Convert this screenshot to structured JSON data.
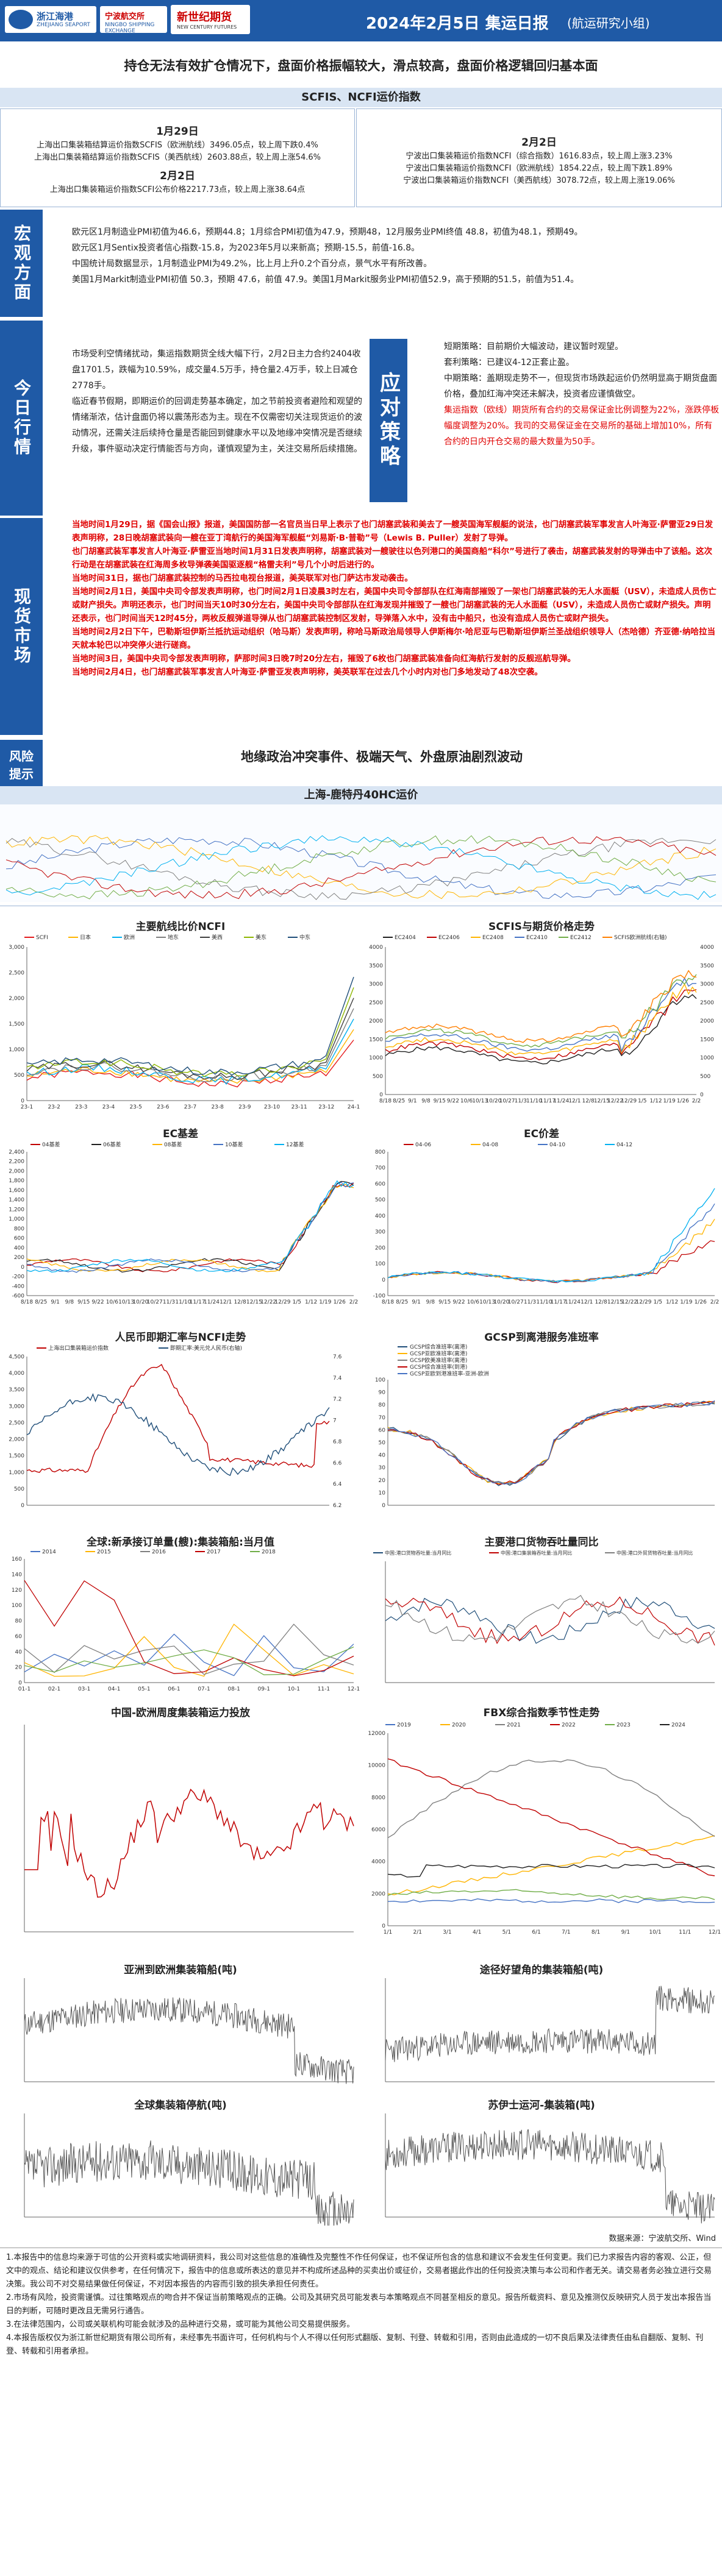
{
  "header": {
    "logo_zheshang_cn": "浙江海港",
    "logo_zheshang_en": "ZHEJIANG SEAPORT",
    "logo_ningbo_cn": "宁波航交所",
    "logo_ningbo_en": "NINGBO SHIPPING EXCHANGE",
    "logo_xsj_cn": "新世纪期货",
    "logo_xsj_en": "NEW CENTURY FUTURES",
    "title": "2024年2月5日 集运日报",
    "subtitle": "(航运研究小组)"
  },
  "headline": "持仓无法有效扩仓情况下，盘面价格振幅较大，滑点较高，盘面价格逻辑回归基本面",
  "section_index": {
    "title": "SCFIS、NCFI运价指数",
    "left_date1": "1月29日",
    "left_lines1": [
      "上海出口集装箱结算运价指数SCFIS（欧洲航线）3496.05点，较上周下跌0.4%",
      "上海出口集装箱结算运价指数SCFIS（美西航线）2603.88点，较上周上涨54.6%"
    ],
    "left_date2": "2月2日",
    "left_lines2": [
      "上海出口集装箱运价指数SCFI公布价格2217.73点，较上周上涨38.64点"
    ],
    "right_date": "2月2日",
    "right_lines": [
      "宁波出口集装箱运价指数NCFI（综合指数）1616.83点，较上周上涨3.23%",
      "宁波出口集装箱运价指数NCFI（欧洲航线）1854.22点，较上周下跌1.89%",
      "宁波出口集装箱运价指数NCFI（美西航线）3078.72点，较上周上涨19.06%"
    ]
  },
  "macro": {
    "label": "宏观方面",
    "lines": [
      "欧元区1月制造业PMI初值为46.6，预期44.8；1月综合PMI初值为47.9，预期48，12月服务业PMI终值 48.8，初值为48.1，预期49。",
      "欧元区1月Sentix投资者信心指数-15.8，为2023年5月以来新高；预期-15.5，前值-16.8。",
      "中国统计局数据显示，1月制造业PMI为49.2%，比上月上升0.2个百分点，景气水平有所改善。",
      "美国1月Markit制造业PMI初值 50.3，预期 47.6，前值 47.9。美国1月Markit服务业PMI初值52.9，高于预期的51.5，前值为51.4。"
    ]
  },
  "today": {
    "label": "今日行情",
    "left": [
      "市场受利空情绪扰动，集运指数期货全线大幅下行，2月2日主力合约2404收盘1701.5，跌幅为10.59%，成交量4.5万手，持仓量2.4万手，较上日减仓2778手。",
      "临近春节假期，即期运价的回调走势基本确定，加之节前投资者避险和观望的情绪渐浓，估计盘面仍将以震荡形态为主。现在不仅需密切关注现货运价的波动情况，还需关注后续持仓量是否能回到健康水平以及地缘冲突情况是否继续升级，事件驱动决定行情能否与方向，谨慎观望为主，关注交易所后续措施。"
    ],
    "strategy_label": "应对策略",
    "right": [
      "短期策略：目前期价大幅波动，建议暂时观望。",
      "套利策略：已建议4-12正套止盈。",
      "中期策略：盖期现走势不一，但现货市场跌起运价仍然明显高于期货盘面价格，叠加红海冲突还未解决，投资者应谨慎做空。"
    ],
    "right_red": "集运指数（欧线）期货所有合约的交易保证金比例调整为22%，涨跌停板幅度调整为20%。我司的交易保证金在交易所的基础上增加10%，所有合约的日内开仓交易的最大数量为50手。"
  },
  "spot": {
    "label": "现货市场",
    "lines": [
      "当地时间1月29日，据《国会山报》报道，美国国防部一名官员当日早上表示了也门胡塞武装和美去了一艘英国海军舰艇的说法，也门胡塞武装军事发言人叶海亚·萨雷亚29日发表声明称，28日晚胡塞武装向一艘在亚丁湾航行的美国海军舰艇“刘易斯·B·普勒”号（Lewis B. Puller）发射了导弹。",
      "也门胡塞武装军事发言人叶海亚·萨雷亚当地时间1月31日发表声明称，胡塞武装对一艘驶往以色列港口的美国商船“科尔”号进行了袭击，胡塞武装发射的导弹击中了该船。这次行动是在胡塞武装在红海周多枚导弹袭美国驱逐舰“格雷夫利”号几个小时后进行的。",
      "当地时间31日，据也门胡塞武装控制的马西拉电视台报道，美英联军对也门萨达市发动袭击。",
      "当地时间2月1日，美国中央司令部发表声明称，也门时间2月1日凌晨3时左右，美国中央司令部部队在红海南部摧毁了一架也门胡塞武装的无人水面艇（USV），未造成人员伤亡或财产损失。声明还表示，也门时间当天10时30分左右，美国中央司令部部队在红海发现并摧毁了一艘也门胡塞武装的无人水面艇（USV），未造成人员伤亡或财产损失。声明还表示，也门时间当天12时45分，两枚反舰弹道导弹从也门胡塞武装控制区发射，导弹落入水中，没有击中船只，也没有造成人员伤亡或财产损失。",
      "当地时间2月2日下午，巴勒斯坦伊斯兰抵抗运动组织（哈马斯）发表声明，称哈马斯政治局领导人伊斯梅尔·哈尼亚与巴勒斯坦伊斯兰圣战组织领导人（杰哈德）齐亚德·纳哈拉当天就本轮巴以冲突停火进行磋商。",
      "当地时间3日，美国中央司令部发表声明称，萨那时间3日晚7时20分左右，摧毁了6枚也门胡塞武装准备向红海航行发射的反舰巡航导弹。",
      "当地时间2月4日，也门胡塞武装军事发言人叶海亚·萨雷亚发表声明称，美英联军在过去几个小时内对也门多地发动了48次空袭。"
    ]
  },
  "risk": {
    "label": "风险提示",
    "text": "地缘政治冲突事件、极端天气、外盘原油剧烈波动"
  },
  "shanghai_ltm_title": "上海-鹿特丹40HC运价",
  "charts": {
    "c_main": {
      "title": "主要航线比价NCFI",
      "series": [
        "SCFI",
        "日本",
        "欧洲",
        "地东",
        "美西",
        "美东",
        "中东"
      ],
      "colors": [
        "#e41a1c",
        "#ffb400",
        "#00b0f0",
        "#7f7f7f",
        "#404040",
        "#8db600",
        "#1f4e79"
      ],
      "xticks": [
        "23-1",
        "23-2",
        "23-3",
        "23-4",
        "23-5",
        "23-6",
        "23-7",
        "23-8",
        "23-9",
        "23-10",
        "23-11",
        "23-12",
        "24-1"
      ],
      "yticks": [
        "3,000",
        "2,500",
        "2,000",
        "1,500",
        "1,000",
        "500",
        "0"
      ]
    },
    "c_scfis": {
      "title": "SCFIS与期货价格走势",
      "series": [
        "EC2404",
        "EC2406",
        "EC2408",
        "EC2410",
        "EC2412",
        "SCFIS欧洲航线(右轴)"
      ],
      "colors": [
        "#1f1f1f",
        "#c00000",
        "#ffb400",
        "#4472c4",
        "#70ad47",
        "#ff7f00"
      ],
      "xticks": [
        "8/18",
        "8/25",
        "9/1",
        "9/8",
        "9/15",
        "9/22",
        "10/6",
        "10/13",
        "10/20",
        "10/27",
        "11/3",
        "11/10",
        "11/17",
        "11/24",
        "12/1",
        "12/8",
        "12/15",
        "12/22",
        "12/29",
        "1/5",
        "1/12",
        "1/19",
        "1/26",
        "2/2"
      ],
      "yticks_left": [
        "4000",
        "3500",
        "3000",
        "2500",
        "2000",
        "1500",
        "1000",
        "500",
        "0"
      ],
      "yticks_right": [
        "4000",
        "3500",
        "3000",
        "2500",
        "2000",
        "1500",
        "1000",
        "500",
        "0"
      ]
    },
    "c_ec_basis": {
      "title": "EC基差",
      "series": [
        "04基差",
        "06基差",
        "08基差",
        "10基差",
        "12基差"
      ],
      "colors": [
        "#c00000",
        "#1f1f1f",
        "#ffb400",
        "#4472c4",
        "#00b0f0"
      ],
      "yticks": [
        "2,400",
        "2,200",
        "2,000",
        "1,800",
        "1,600",
        "1,400",
        "1,200",
        "1,000",
        "800",
        "600",
        "400",
        "200",
        "0",
        "-200",
        "-400",
        "-600"
      ],
      "xticks": [
        "8/18",
        "8/25",
        "9/1",
        "9/8",
        "9/15",
        "9/22",
        "10/6",
        "10/13",
        "10/20",
        "10/27",
        "11/3",
        "11/10",
        "11/17",
        "11/24",
        "12/1",
        "12/8",
        "12/15",
        "12/22",
        "12/29",
        "1/5",
        "1/12",
        "1/19",
        "1/26",
        "2/2"
      ]
    },
    "c_ec_spread": {
      "title": "EC价差",
      "series": [
        "04-06",
        "04-08",
        "04-10",
        "04-12"
      ],
      "colors": [
        "#c00000",
        "#ffb400",
        "#4472c4",
        "#00b0f0"
      ],
      "yticks": [
        "800",
        "700",
        "600",
        "500",
        "400",
        "300",
        "200",
        "100",
        "0",
        "-100"
      ],
      "xticks": [
        "8/18",
        "8/25",
        "9/1",
        "9/8",
        "9/15",
        "9/22",
        "10/6",
        "10/13",
        "10/20",
        "10/27",
        "11/3",
        "11/10",
        "11/17",
        "11/24",
        "12/1",
        "12/8",
        "12/15",
        "12/22",
        "12/29",
        "1/5",
        "1/12",
        "1/19",
        "1/26",
        "2/2"
      ]
    },
    "c_rmb": {
      "title": "人民币即期汇率与NCFI走势",
      "series": [
        "上海出口集装箱运价指数",
        "即期汇率:美元兑人民币(右轴)"
      ],
      "colors": [
        "#c00000",
        "#1f4e79"
      ],
      "yticks_left": [
        "4,500",
        "4,000",
        "3,500",
        "3,000",
        "2,500",
        "2,000",
        "1,500",
        "1,000",
        "500",
        "0"
      ],
      "yticks_right": [
        "7.6",
        "7.4",
        "7.2",
        "7",
        "6.8",
        "6.6",
        "6.4",
        "6.2"
      ]
    },
    "c_gcsp": {
      "title": "GCSP到离港服务准班率",
      "series": [
        "GCSP综合准班率(离港)",
        "GCSP亚欧准班率(离港)",
        "GCSP欧美准班率(离港)",
        "GCSP综合准班率(到港)",
        "GCSP亚欧到港准班率-亚洲-欧洲"
      ],
      "colors": [
        "#1f4e79",
        "#ffb400",
        "#7f7f7f",
        "#c00000",
        "#4472c4"
      ],
      "yticks": [
        "100",
        "90",
        "80",
        "70",
        "60",
        "50",
        "40",
        "30",
        "20",
        "10",
        "0"
      ]
    },
    "c_orders": {
      "title": "全球:新承接订单量(艘):集装箱船:当月值",
      "series": [
        "2014",
        "2015",
        "2016",
        "2017",
        "2018"
      ],
      "colors": [
        "#4472c4",
        "#ffb400",
        "#7f7f7f",
        "#c00000",
        "#70ad47"
      ],
      "yticks": [
        "160",
        "140",
        "120",
        "100",
        "80",
        "60",
        "40",
        "20",
        "0"
      ],
      "xticks": [
        "01-1",
        "02-1",
        "03-1",
        "04-1",
        "05-1",
        "06-1",
        "07-1",
        "08-1",
        "09-1",
        "10-1",
        "11-1",
        "12-1"
      ]
    },
    "c_port": {
      "title": "主要港口货物吞吐量同比",
      "series": [
        "中国:港口货物吞吐量:当月同比",
        "中国:港口集装箱吞吐量:当月同比",
        "中国:港口外贸货物吞吐量:当月同比"
      ],
      "colors": [
        "#1f4e79",
        "#c00000",
        "#7f7f7f"
      ]
    },
    "c_cn_eu": {
      "title": "中国-欧洲周度集装箱运力投放"
    },
    "c_fbx": {
      "title": "FBX综合指数季节性走势",
      "series": [
        "2019",
        "2020",
        "2021",
        "2022",
        "2023",
        "2024"
      ],
      "colors": [
        "#4472c4",
        "#ffb400",
        "#7f7f7f",
        "#c00000",
        "#70ad47",
        "#1f1f1f"
      ],
      "yticks": [
        "12000",
        "10000",
        "8000",
        "6000",
        "4000",
        "2000",
        "0"
      ],
      "xticks": [
        "1/1",
        "2/1",
        "3/1",
        "4/1",
        "5/1",
        "6/1",
        "7/1",
        "8/1",
        "9/1",
        "10/1",
        "11/1",
        "12/1"
      ]
    },
    "c_asia_eu": {
      "title": "亚洲到欧洲集装箱船(吨)"
    },
    "c_cape": {
      "title": "途径好望角的集装箱船(吨)"
    },
    "c_anchor": {
      "title": "全球集装箱停航(吨)"
    },
    "c_suez": {
      "title": "苏伊士运河-集装箱(吨)"
    }
  },
  "source": "数据来源：宁波航交所、Wind",
  "disclaimer": [
    "1.本报告中的信息均来源于可信的公开资料或实地调研资料，我公司对这些信息的准确性及完整性不作任何保证，也不保证所包含的信息和建议不会发生任何变更。我们已力求报告内容的客观、公正，但文中的观点、结论和建议仅供参考，在任何情况下，报告中的信息或所表达的意见并不构成所述品种的买卖出价或征价，交易者据此作出的任何投资决策与本公司和作者无关。请交易者务必独立进行交易决策。我公司不对交易结果做任何保证，不对因本报告的内容而引致的损失承担任何责任。",
    "2.市场有风险，投资需谨慎。过往策略观点的吻合并不保证当前策略观点的正确。公司及其研究员可能发表与本策略观点不同甚至相反的意见。报告所载资料、意见及推测仅反映研究人员于发出本报告当日的判断，可随时更改且无需另行通告。",
    "3.在法律范围内，公司或关联机构可能会就涉及的品种进行交易，或可能为其他公司交易提供服务。",
    "4.本报告版权仅为浙江新世纪期货有限公司所有，未经事先书面许可，任何机构与个人不得以任何形式翻版、复制、刊登、转载和引用，否则由此造成的一切不良后果及法律责任由私自翻版、复制、刊登、转载和引用者承担。"
  ]
}
